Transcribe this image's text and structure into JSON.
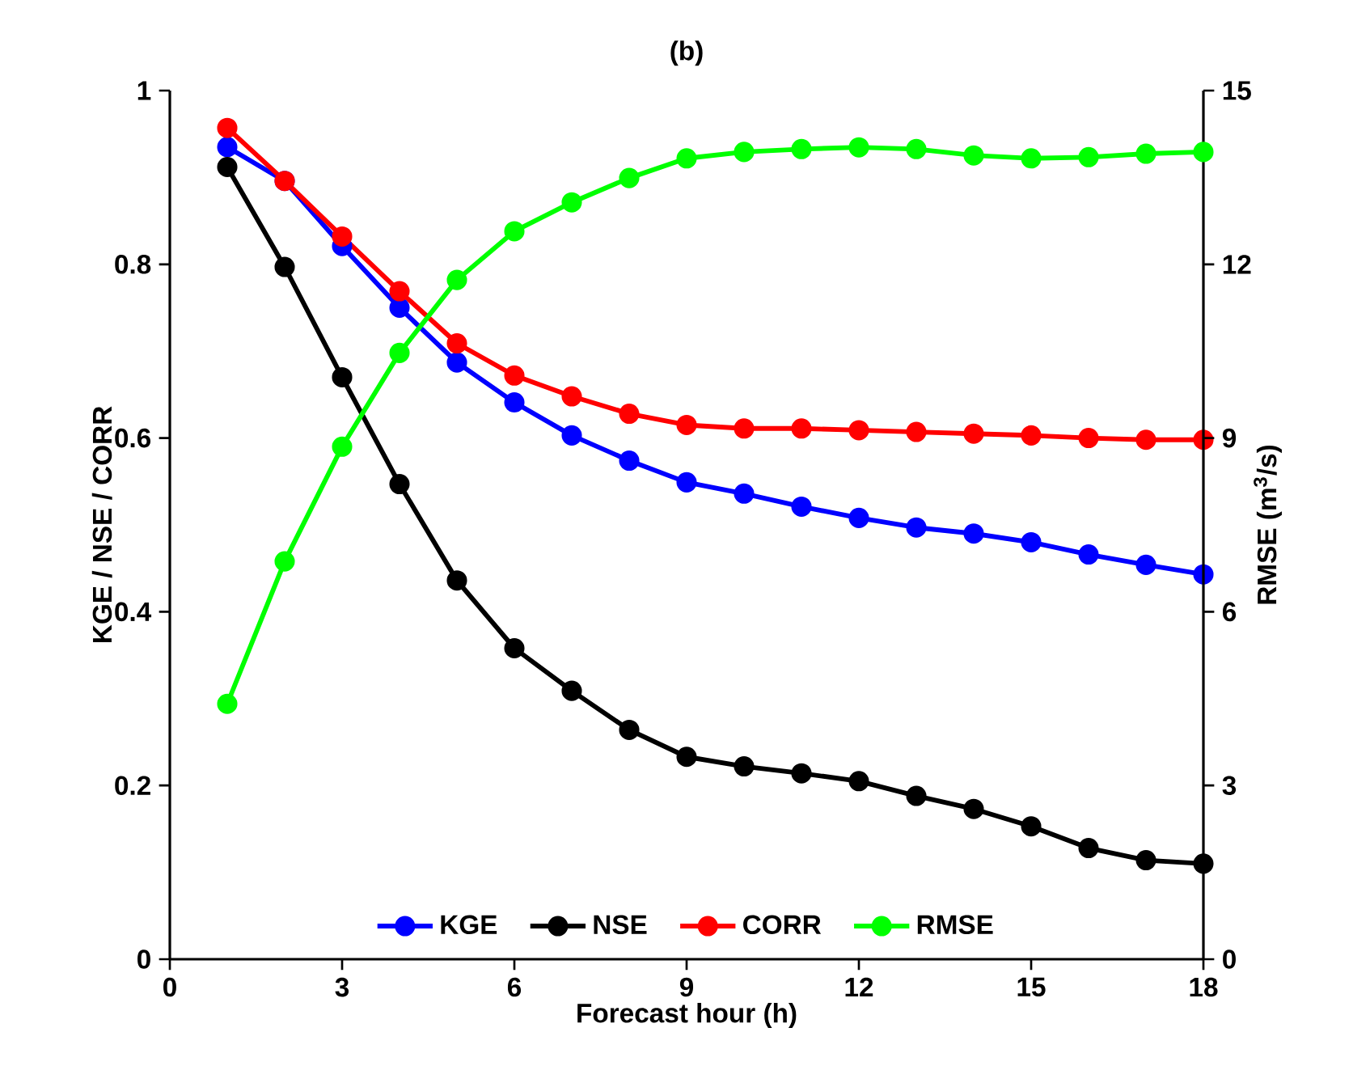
{
  "chart_data": {
    "type": "line",
    "title": "(b)",
    "xlabel": "Forecast hour (h)",
    "ylabel": "KGE / NSE / CORR",
    "y2label": "RMSE (m$^{3}$/s)",
    "x": [
      1,
      2,
      3,
      4,
      5,
      6,
      7,
      8,
      9,
      10,
      11,
      12,
      13,
      14,
      15,
      16,
      17,
      18
    ],
    "series": [
      {
        "name": "KGE",
        "color": "#0000ff",
        "values": [
          0.935,
          0.896,
          0.821,
          0.75,
          0.687,
          0.641,
          0.603,
          0.574,
          0.549,
          0.536,
          0.521,
          0.508,
          0.497,
          0.49,
          0.48,
          0.466,
          0.454,
          0.443
        ]
      },
      {
        "name": "NSE",
        "color": "#000000",
        "values": [
          0.912,
          0.797,
          0.67,
          0.547,
          0.436,
          0.358,
          0.309,
          0.264,
          0.233,
          0.222,
          0.214,
          0.205,
          0.188,
          0.173,
          0.153,
          0.128,
          0.114,
          0.11
        ]
      },
      {
        "name": "CORR",
        "color": "#ff0000",
        "values": [
          0.957,
          0.896,
          0.832,
          0.769,
          0.709,
          0.672,
          0.648,
          0.628,
          0.615,
          0.611,
          0.611,
          0.609,
          0.607,
          0.605,
          0.603,
          0.6,
          0.598,
          0.598
        ]
      },
      {
        "name": "RMSE",
        "color": "#00ff00",
        "axis": "y2",
        "values": [
          4.41,
          6.87,
          8.85,
          10.47,
          11.73,
          12.57,
          13.07,
          13.49,
          13.83,
          13.94,
          13.99,
          14.02,
          13.99,
          13.88,
          13.83,
          13.85,
          13.91,
          13.94
        ]
      }
    ],
    "xlim": [
      0,
      18
    ],
    "xticks": [
      0,
      3,
      6,
      9,
      12,
      15,
      18
    ],
    "ylim": [
      0,
      1
    ],
    "yticks": [
      0,
      0.2,
      0.4,
      0.6,
      0.8,
      1
    ],
    "y2lim": [
      0,
      15
    ],
    "y2ticks": [
      0,
      3,
      6,
      9,
      12,
      15
    ],
    "legend": "bottom",
    "marker": "circle",
    "line_style": "solid",
    "grid": false
  }
}
